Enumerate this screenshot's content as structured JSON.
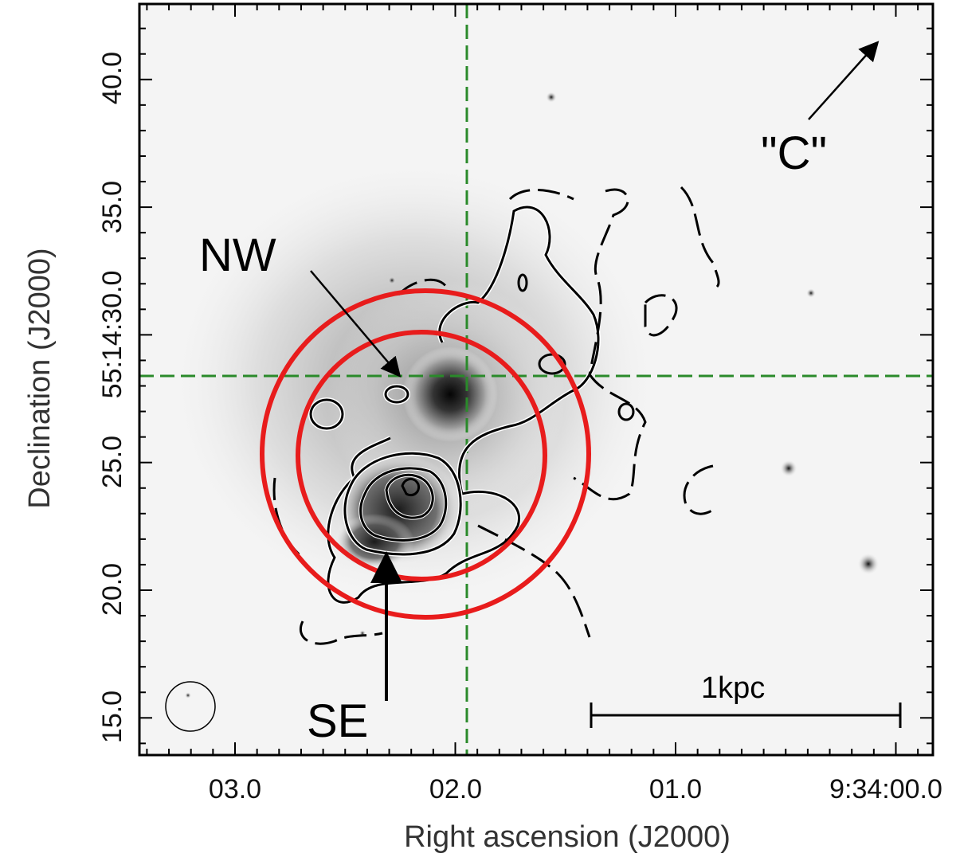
{
  "figure": {
    "x_axis": {
      "title": "Right ascension (J2000)",
      "ticks": [
        "03.0",
        "02.0",
        "01.0",
        "9:34:00.0"
      ]
    },
    "y_axis": {
      "title": "Declination (J2000)",
      "ticks": [
        "40.0",
        "35.0",
        "55:14:30.0",
        "25.0",
        "20.0",
        "15.0"
      ]
    },
    "annotations": {
      "nw": "NW",
      "se": "SE",
      "c": "\"C\""
    },
    "scale_bar": {
      "label": "1kpc"
    },
    "colors": {
      "circle": "#e81c1c",
      "crosshair": "#2a8a2a",
      "contour": "#000000",
      "frame": "#000000"
    },
    "image_style": "inverted greyscale optical image with overlaid contours"
  }
}
